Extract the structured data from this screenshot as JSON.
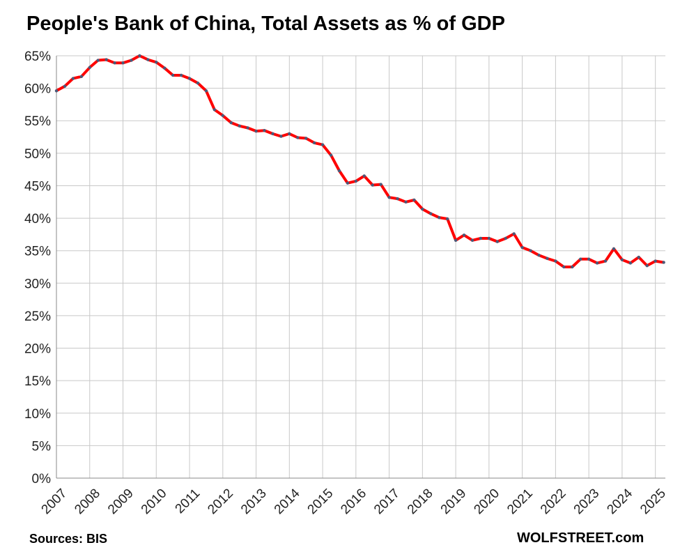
{
  "title": "People's Bank of China, Total Assets as % of GDP",
  "source": "Sources: BIS",
  "brand": "WOLFSTREET.com",
  "colors": {
    "line": "#ff0000",
    "marker": "#4a5a7a",
    "grid": "#c8c8c8",
    "axis": "#888888"
  },
  "chart_data": {
    "type": "line",
    "title": "People's Bank of China, Total Assets as % of GDP",
    "xlabel": "",
    "ylabel": "",
    "ylim": [
      0,
      65
    ],
    "y_ticks": [
      0,
      5,
      10,
      15,
      20,
      25,
      30,
      35,
      40,
      45,
      50,
      55,
      60,
      65
    ],
    "y_tick_labels": [
      "0%",
      "5%",
      "10%",
      "15%",
      "20%",
      "25%",
      "30%",
      "35%",
      "40%",
      "45%",
      "50%",
      "55%",
      "60%",
      "65%"
    ],
    "x_tick_labels": [
      "2007",
      "2008",
      "2009",
      "2010",
      "2011",
      "2012",
      "2013",
      "2014",
      "2015",
      "2016",
      "2017",
      "2018",
      "2019",
      "2020",
      "2021",
      "2022",
      "2023",
      "2024",
      "2025"
    ],
    "x_range": [
      2007.0,
      2025.3
    ],
    "grid": true,
    "series": [
      {
        "x": [
          2007.0,
          2007.25,
          2007.5,
          2007.75,
          2008.0,
          2008.25,
          2008.5,
          2008.75,
          2009.0,
          2009.25,
          2009.5,
          2009.75,
          2010.0,
          2010.25,
          2010.5,
          2010.75,
          2011.0,
          2011.25,
          2011.5,
          2011.75,
          2012.0,
          2012.25,
          2012.5,
          2012.75,
          2013.0,
          2013.25,
          2013.5,
          2013.75,
          2014.0,
          2014.25,
          2014.5,
          2014.75,
          2015.0,
          2015.25,
          2015.5,
          2015.75,
          2016.0,
          2016.25,
          2016.5,
          2016.75,
          2017.0,
          2017.25,
          2017.5,
          2017.75,
          2018.0,
          2018.25,
          2018.5,
          2018.75,
          2019.0,
          2019.25,
          2019.5,
          2019.75,
          2020.0,
          2020.25,
          2020.5,
          2020.75,
          2021.0,
          2021.25,
          2021.5,
          2021.75,
          2022.0,
          2022.25,
          2022.5,
          2022.75,
          2023.0,
          2023.25,
          2023.5,
          2023.75,
          2024.0,
          2024.25,
          2024.5,
          2024.75,
          2025.0,
          2025.25
        ],
        "values": [
          59.6,
          60.3,
          61.5,
          61.8,
          63.2,
          64.3,
          64.4,
          63.9,
          63.9,
          64.3,
          65.0,
          64.4,
          64.0,
          63.1,
          62.0,
          62.0,
          61.5,
          60.8,
          59.6,
          56.7,
          55.8,
          54.7,
          54.2,
          53.9,
          53.4,
          53.5,
          53.0,
          52.6,
          53.0,
          52.4,
          52.3,
          51.6,
          51.3,
          49.7,
          47.3,
          45.4,
          45.7,
          46.5,
          45.1,
          45.2,
          43.2,
          43.0,
          42.5,
          42.8,
          41.4,
          40.7,
          40.1,
          39.9,
          36.6,
          37.4,
          36.6,
          36.9,
          36.9,
          36.4,
          36.9,
          37.6,
          35.5,
          35.0,
          34.3,
          33.8,
          33.4,
          32.5,
          32.5,
          33.7,
          33.7,
          33.1,
          33.4,
          35.3,
          33.6,
          33.1,
          34.0,
          32.7,
          33.4,
          33.2
        ]
      }
    ]
  }
}
